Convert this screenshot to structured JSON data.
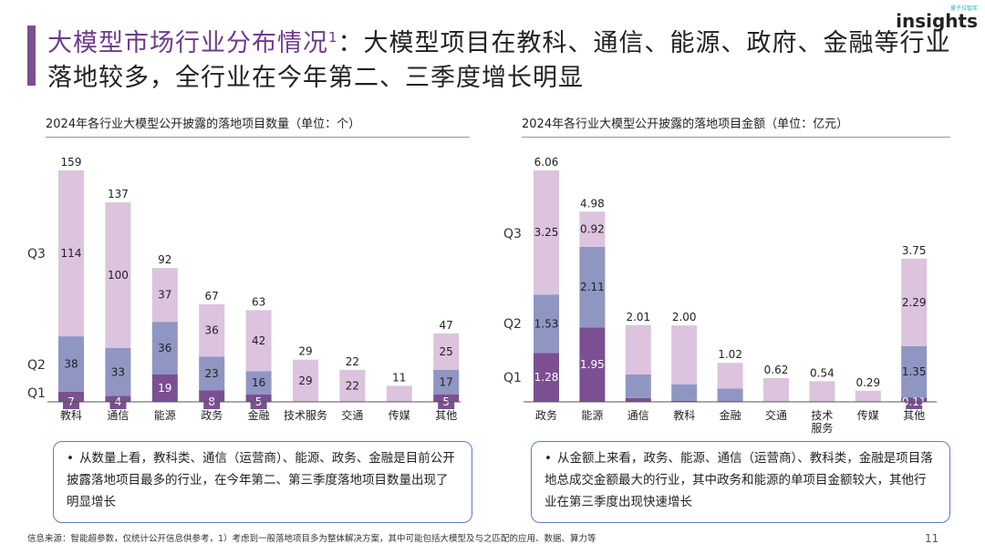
{
  "header": {
    "title_highlight": "大模型市场行业分布情况",
    "title_sup": "1",
    "title_rest": "：大模型项目在教科、通信、能源、政府、金融等行业落地较多，全行业在今年第二、三季度增长明显"
  },
  "logo": {
    "text": "insights",
    "small_text": "量子位智库"
  },
  "colors": {
    "Q1": "#7b4f92",
    "Q2": "#8f96c2",
    "Q3": "#dcc3de",
    "accent": "#6f3b8e",
    "box_border": "#5b7bd0"
  },
  "chart_data": [
    {
      "type": "bar",
      "stacked": true,
      "title": "2024年各行业大模型公开披露的落地项目数量（单位：个）",
      "categories": [
        "教科",
        "通信",
        "能源",
        "政务",
        "金融",
        "技术服务",
        "交通",
        "传媒",
        "其他"
      ],
      "series": [
        {
          "name": "Q1",
          "values": [
            7,
            4,
            19,
            8,
            5,
            0,
            0,
            0,
            5
          ],
          "labels": [
            "7",
            "4",
            "19",
            "8",
            "5",
            "",
            "",
            "",
            "5"
          ]
        },
        {
          "name": "Q2",
          "values": [
            38,
            33,
            36,
            23,
            16,
            0,
            0,
            0,
            17
          ],
          "labels": [
            "38",
            "33",
            "36",
            "23",
            "16",
            "",
            "",
            "",
            "17"
          ]
        },
        {
          "name": "Q3",
          "values": [
            114,
            100,
            37,
            36,
            42,
            29,
            22,
            11,
            25
          ],
          "labels": [
            "114",
            "100",
            "37",
            "36",
            "42",
            "29",
            "22",
            "",
            "25"
          ]
        }
      ],
      "totals": [
        "159",
        "137",
        "92",
        "67",
        "63",
        "29",
        "22",
        "11",
        "47"
      ],
      "ylim": [
        0,
        159
      ]
    },
    {
      "type": "bar",
      "stacked": true,
      "title": "2024年各行业大模型公开披露的落地项目金额（单位：亿元）",
      "categories": [
        "政务",
        "能源",
        "通信",
        "教科",
        "金融",
        "交通",
        "技术服务",
        "传媒",
        "其他"
      ],
      "series": [
        {
          "name": "Q1",
          "values": [
            1.28,
            1.95,
            0.1,
            0.03,
            0.02,
            0,
            0,
            0,
            0.11
          ],
          "labels": [
            "1.28",
            "1.95",
            "",
            "",
            "",
            "",
            "",
            "",
            "0.11"
          ]
        },
        {
          "name": "Q2",
          "values": [
            1.53,
            2.11,
            0.62,
            0.43,
            0.33,
            0,
            0,
            0,
            1.35
          ],
          "labels": [
            "1.53",
            "2.11",
            "",
            "",
            "",
            "",
            "",
            "",
            "1.35"
          ]
        },
        {
          "name": "Q3",
          "values": [
            3.25,
            0.92,
            1.29,
            1.54,
            0.67,
            0.62,
            0.54,
            0.29,
            2.29
          ],
          "labels": [
            "3.25",
            "0.92",
            "",
            "",
            "",
            "",
            "",
            "",
            "2.29"
          ]
        }
      ],
      "totals": [
        "6.06",
        "4.98",
        "2.01",
        "2.00",
        "1.02",
        "0.62",
        "0.54",
        "0.29",
        "3.75"
      ],
      "ylim": [
        0,
        6.06
      ]
    }
  ],
  "notes": {
    "left": "从数量上看，教科类、通信（运营商）、能源、政务、金融是目前公开披露落地项目最多的行业，在今年第二、第三季度落地项目数量出现了明显增长",
    "right": "从金额上来看，政务、能源、通信（运营商）、教科类，金融是项目落地总成交金额最大的行业，其中政务和能源的单项目金额较大，其他行业在第三季度出现快速增长"
  },
  "footer": {
    "source": "信息来源：智能超参数，仅统计公开信息供参考，1）考虑到一般落地项目多为整体解决方案，其中可能包括大模型及与之匹配的应用、数据、算力等",
    "page": "11"
  }
}
